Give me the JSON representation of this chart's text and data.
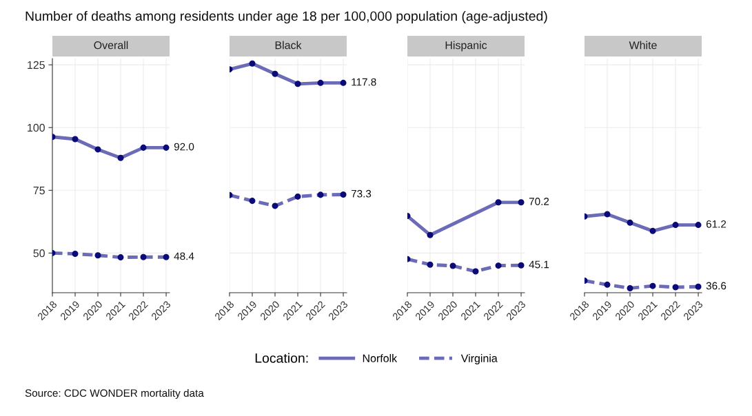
{
  "chart_data": [
    {
      "type": "line",
      "title": "Number of deaths among residents under age 18 per 100,000 population (age-adjusted)",
      "subtitle": "Overall",
      "legend_title": "Location:",
      "legend": "bottom",
      "annotations": [
        "Source: CDC WONDER mortality data"
      ],
      "x": [
        2018,
        2019,
        2020,
        2021,
        2022,
        2023
      ],
      "xlim": [
        2018,
        2023.15
      ],
      "xticks": [
        2018,
        2019,
        2020,
        2021,
        2022,
        2023
      ],
      "ylim": [
        34.2,
        127.5
      ],
      "yticks": [
        50,
        75,
        100,
        125
      ],
      "grid": true,
      "marker": "circle",
      "series": [
        {
          "name": "Norfolk",
          "color": "#6b6bb8",
          "line_style": "solid",
          "values": [
            96.3,
            95.4,
            91.3,
            87.9,
            92.0,
            92.0
          ],
          "value_labels": [
            null,
            null,
            null,
            null,
            null,
            "92.0"
          ]
        },
        {
          "name": "Virginia",
          "color": "#6b6bb8",
          "line_style": "dashed",
          "values": [
            50.0,
            49.7,
            49.1,
            48.3,
            48.4,
            48.4
          ],
          "value_labels": [
            null,
            null,
            null,
            null,
            null,
            "48.4"
          ]
        }
      ]
    },
    {
      "type": "line",
      "subtitle": "Black",
      "x": [
        2018,
        2019,
        2020,
        2021,
        2022,
        2023
      ],
      "xlim": [
        2018,
        2023.15
      ],
      "xticks": [
        2018,
        2019,
        2020,
        2021,
        2022,
        2023
      ],
      "ylim": [
        34.2,
        127.5
      ],
      "yticks": [
        50,
        75,
        100,
        125
      ],
      "tick_labels": "x",
      "grid": true,
      "marker": "circle",
      "series": [
        {
          "color": "#6b6bb8",
          "line_style": "solid",
          "values": [
            123.2,
            125.5,
            121.4,
            117.4,
            117.8,
            117.8
          ],
          "value_labels": [
            null,
            null,
            null,
            null,
            null,
            "117.8"
          ]
        },
        {
          "color": "#6b6bb8",
          "line_style": "dashed",
          "values": [
            73.1,
            70.8,
            68.8,
            72.5,
            73.2,
            73.3
          ],
          "value_labels": [
            null,
            null,
            null,
            null,
            null,
            "73.3"
          ]
        }
      ]
    },
    {
      "type": "line",
      "subtitle": "Hispanic",
      "x": [
        2018,
        2019,
        2020,
        2021,
        2022,
        2023
      ],
      "xlim": [
        2018,
        2023.15
      ],
      "xticks": [
        2018,
        2019,
        2020,
        2021,
        2022,
        2023
      ],
      "ylim": [
        34.2,
        127.5
      ],
      "yticks": [
        50,
        75,
        100,
        125
      ],
      "tick_labels": "x",
      "grid": true,
      "marker": "circle",
      "series": [
        {
          "color": "#6b6bb8",
          "line_style": "solid",
          "x": [
            2018,
            2019,
            2022,
            2023
          ],
          "values": [
            64.8,
            57.2,
            70.2,
            70.2
          ],
          "value_labels": [
            null,
            null,
            null,
            "70.2"
          ]
        },
        {
          "color": "#6b6bb8",
          "line_style": "dashed",
          "values": [
            47.6,
            45.4,
            44.9,
            42.7,
            45.0,
            45.1
          ],
          "value_labels": [
            null,
            null,
            null,
            null,
            null,
            "45.1"
          ]
        }
      ]
    },
    {
      "type": "line",
      "subtitle": "White",
      "x": [
        2018,
        2019,
        2020,
        2021,
        2022,
        2023
      ],
      "xlim": [
        2018,
        2023.15
      ],
      "xticks": [
        2018,
        2019,
        2020,
        2021,
        2022,
        2023
      ],
      "ylim": [
        34.2,
        127.5
      ],
      "yticks": [
        50,
        75,
        100,
        125
      ],
      "tick_labels": "x",
      "grid": true,
      "marker": "circle",
      "series": [
        {
          "color": "#6b6bb8",
          "line_style": "solid",
          "values": [
            64.6,
            65.5,
            62.1,
            58.8,
            61.2,
            61.2
          ],
          "value_labels": [
            null,
            null,
            null,
            null,
            null,
            "61.2"
          ]
        },
        {
          "color": "#6b6bb8",
          "line_style": "dashed",
          "values": [
            39.0,
            37.4,
            36.0,
            36.9,
            36.4,
            36.6
          ],
          "value_labels": [
            null,
            null,
            null,
            null,
            null,
            "36.6"
          ]
        }
      ]
    }
  ]
}
